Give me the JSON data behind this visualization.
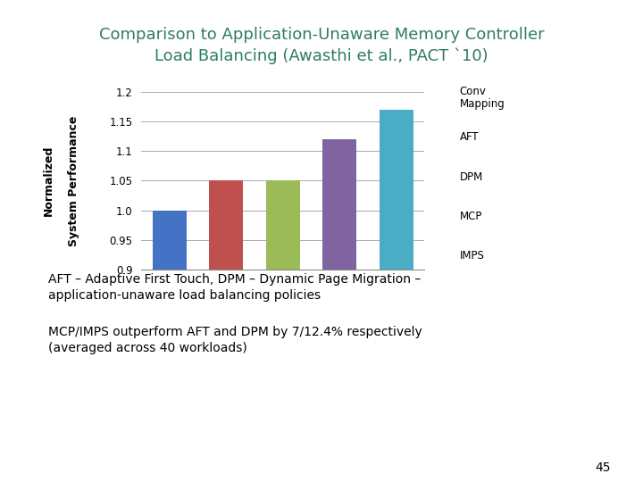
{
  "title_line1": "Comparison to Application-Unaware Memory Controller",
  "title_line2": "Load Balancing (Awasthi et al., PACT `10)",
  "title_color": "#2E7D5E",
  "bar_labels": [
    "Conv\nMapping",
    "AFT",
    "DPM",
    "MCP",
    "IMPS"
  ],
  "bar_values": [
    1.0,
    1.05,
    1.05,
    1.12,
    1.17
  ],
  "bar_colors": [
    "#4472C4",
    "#C0504D",
    "#9BBB59",
    "#8064A2",
    "#4BACC6"
  ],
  "ylabel_top": "Normalized",
  "ylabel_bottom": "System Performance",
  "ylim": [
    0.9,
    1.2
  ],
  "yticks": [
    0.9,
    0.95,
    1.0,
    1.05,
    1.1,
    1.15,
    1.2
  ],
  "background_color": "#FFFFFF",
  "grid_color": "#AAAAAA",
  "bullet1_text": "AFT – Adaptive First Touch, DPM – Dynamic Page Migration –\napplication-unaware load balancing policies",
  "bullet2_text": "MCP/IMPS outperform AFT and DPM by 7/12.4% respectively\n(averaged across 40 workloads)",
  "bullet_square_color": "#C0A020",
  "page_number": "45",
  "top_border_color": "#B8A020",
  "bottom_border_color": "#B8A020",
  "title_underline_color": "#B8A020",
  "legend_labels": [
    "Conv\nMapping",
    "AFT",
    "DPM",
    "MCP",
    "IMPS"
  ]
}
